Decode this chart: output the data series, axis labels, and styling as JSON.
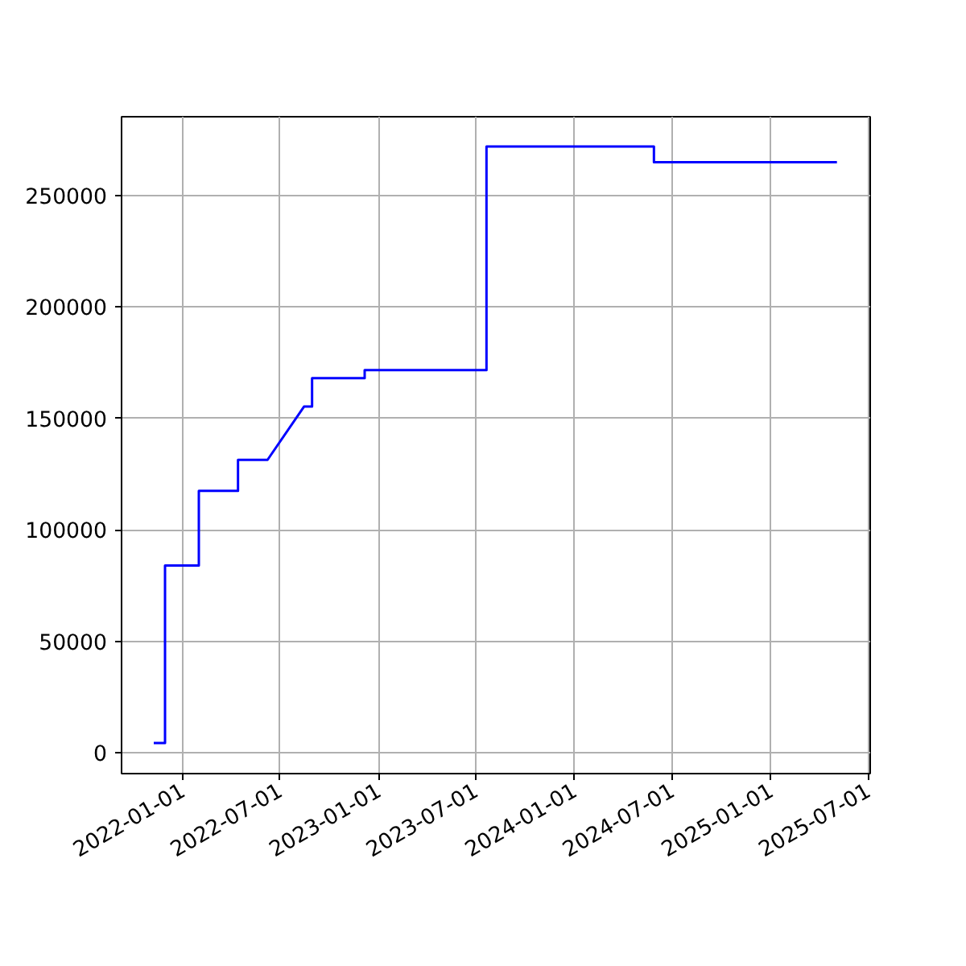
{
  "chart_data": {
    "type": "line",
    "color": "#0000ff",
    "x": [
      "2021-11-08",
      "2021-11-29",
      "2021-11-29",
      "2022-01-31",
      "2022-01-31",
      "2022-04-14",
      "2022-04-14",
      "2022-06-08",
      "2022-08-15",
      "2022-08-30",
      "2022-08-30",
      "2022-12-06",
      "2022-12-06",
      "2023-07-21",
      "2023-07-21",
      "2024-05-28",
      "2024-05-28",
      "2025-05-04"
    ],
    "values": [
      4300,
      4300,
      84000,
      84000,
      117500,
      117500,
      131400,
      131400,
      155300,
      155300,
      168100,
      168100,
      171700,
      171700,
      272000,
      272000,
      265000,
      265000
    ],
    "xlim": [
      "2021-09-09",
      "2025-07-05"
    ],
    "ylim": [
      -9400,
      285400
    ],
    "xticks": [
      "2022-01-01",
      "2022-07-01",
      "2023-01-01",
      "2023-07-01",
      "2024-01-01",
      "2024-07-01",
      "2025-01-01",
      "2025-07-01"
    ],
    "yticks": [
      0,
      50000,
      100000,
      150000,
      200000,
      250000
    ],
    "grid": true,
    "marker": "none",
    "line_style": "solid"
  }
}
